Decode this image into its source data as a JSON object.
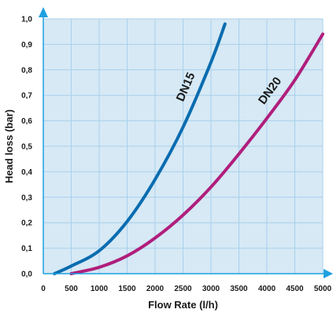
{
  "chart_data": {
    "type": "line",
    "title": "",
    "xlabel": "Flow Rate (l/h)",
    "ylabel": "Head loss (bar)",
    "xlim": [
      0,
      5000
    ],
    "ylim": [
      0,
      1.0
    ],
    "x_ticks": [
      0,
      500,
      1000,
      1500,
      2000,
      2500,
      3000,
      3500,
      4000,
      4500,
      5000
    ],
    "x_tick_labels": [
      "0",
      "500",
      "1000",
      "1500",
      "2000",
      "2500",
      "3000",
      "3500",
      "4000",
      "4500",
      "5000"
    ],
    "y_ticks": [
      0,
      0.1,
      0.2,
      0.3,
      0.4,
      0.5,
      0.6,
      0.7,
      0.8,
      0.9,
      1.0
    ],
    "y_tick_labels": [
      "0,0",
      "0,1",
      "0,2",
      "0,3",
      "0,4",
      "0,5",
      "0,6",
      "0,7",
      "0,8",
      "0,9",
      "1,0"
    ],
    "grid": true,
    "legend": "none (series labelled directly on curves)",
    "plot_background": "#d6e9f5",
    "grid_color": "#a9d0eb",
    "axis_arrow_color": "#1ea0e0",
    "series": [
      {
        "name": "DN15",
        "color": "#0a6cb0",
        "x": [
          200,
          500,
          1000,
          1500,
          2000,
          2500,
          3000,
          3250
        ],
        "y": [
          0.0,
          0.03,
          0.09,
          0.205,
          0.37,
          0.575,
          0.83,
          0.98
        ]
      },
      {
        "name": "DN20",
        "color": "#b01e7c",
        "x": [
          500,
          1000,
          1500,
          2000,
          2500,
          3000,
          3500,
          4000,
          4500,
          5000
        ],
        "y": [
          0.0,
          0.025,
          0.07,
          0.14,
          0.23,
          0.34,
          0.47,
          0.61,
          0.76,
          0.94
        ]
      }
    ]
  }
}
